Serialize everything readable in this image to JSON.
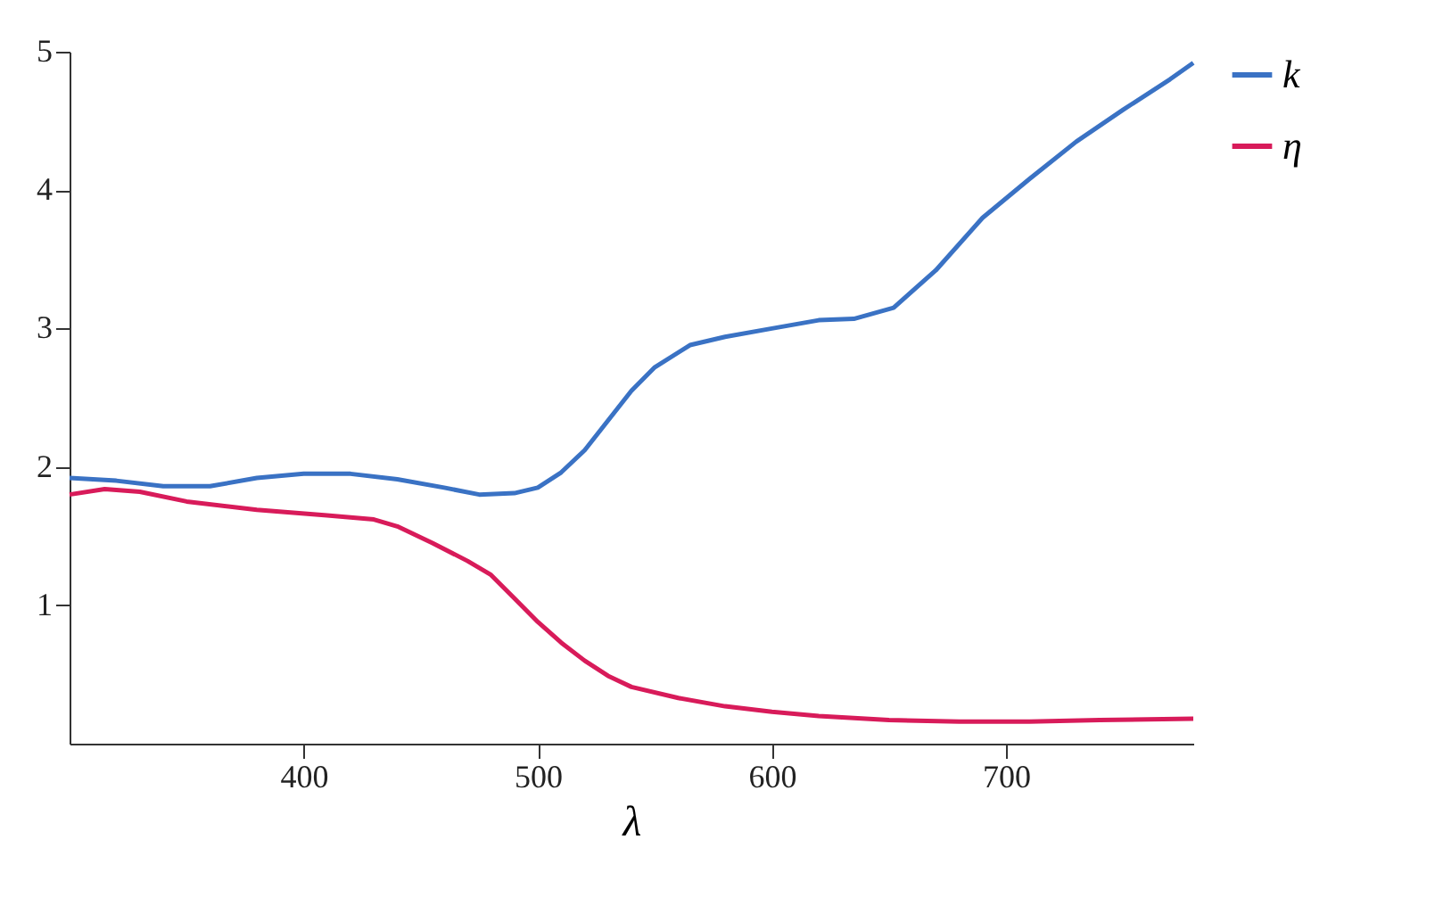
{
  "chart_data": {
    "type": "line",
    "xlabel": "λ",
    "xlim": [
      300,
      780
    ],
    "xticks": [
      400,
      500,
      600,
      700
    ],
    "ylim": [
      0,
      5
    ],
    "yticks": [
      1,
      2,
      3,
      4,
      5
    ],
    "grid": false,
    "legend": "right",
    "marker": "none",
    "line_style": "solid",
    "series": [
      {
        "name": "k",
        "color": "#3a72c4",
        "x": [
          300,
          320,
          340,
          360,
          380,
          400,
          420,
          440,
          460,
          475,
          490,
          500,
          510,
          520,
          540,
          550,
          565,
          580,
          600,
          620,
          635,
          652,
          670,
          690,
          710,
          730,
          750,
          770,
          780
        ],
        "values": [
          1.92,
          1.9,
          1.86,
          1.86,
          1.92,
          1.95,
          1.95,
          1.91,
          1.85,
          1.8,
          1.81,
          1.85,
          1.96,
          2.12,
          2.55,
          2.72,
          2.88,
          2.94,
          3.0,
          3.06,
          3.07,
          3.15,
          3.42,
          3.8,
          4.08,
          4.35,
          4.58,
          4.8,
          4.92
        ]
      },
      {
        "name": "η",
        "color": "#d81b5a",
        "x": [
          300,
          315,
          330,
          350,
          380,
          410,
          430,
          440,
          455,
          470,
          480,
          490,
          500,
          510,
          520,
          530,
          540,
          560,
          580,
          600,
          620,
          650,
          680,
          710,
          740,
          780
        ],
        "values": [
          1.8,
          1.84,
          1.82,
          1.75,
          1.69,
          1.65,
          1.62,
          1.57,
          1.45,
          1.32,
          1.22,
          1.05,
          0.88,
          0.73,
          0.6,
          0.49,
          0.41,
          0.33,
          0.27,
          0.23,
          0.2,
          0.17,
          0.16,
          0.16,
          0.17,
          0.18
        ]
      }
    ]
  }
}
